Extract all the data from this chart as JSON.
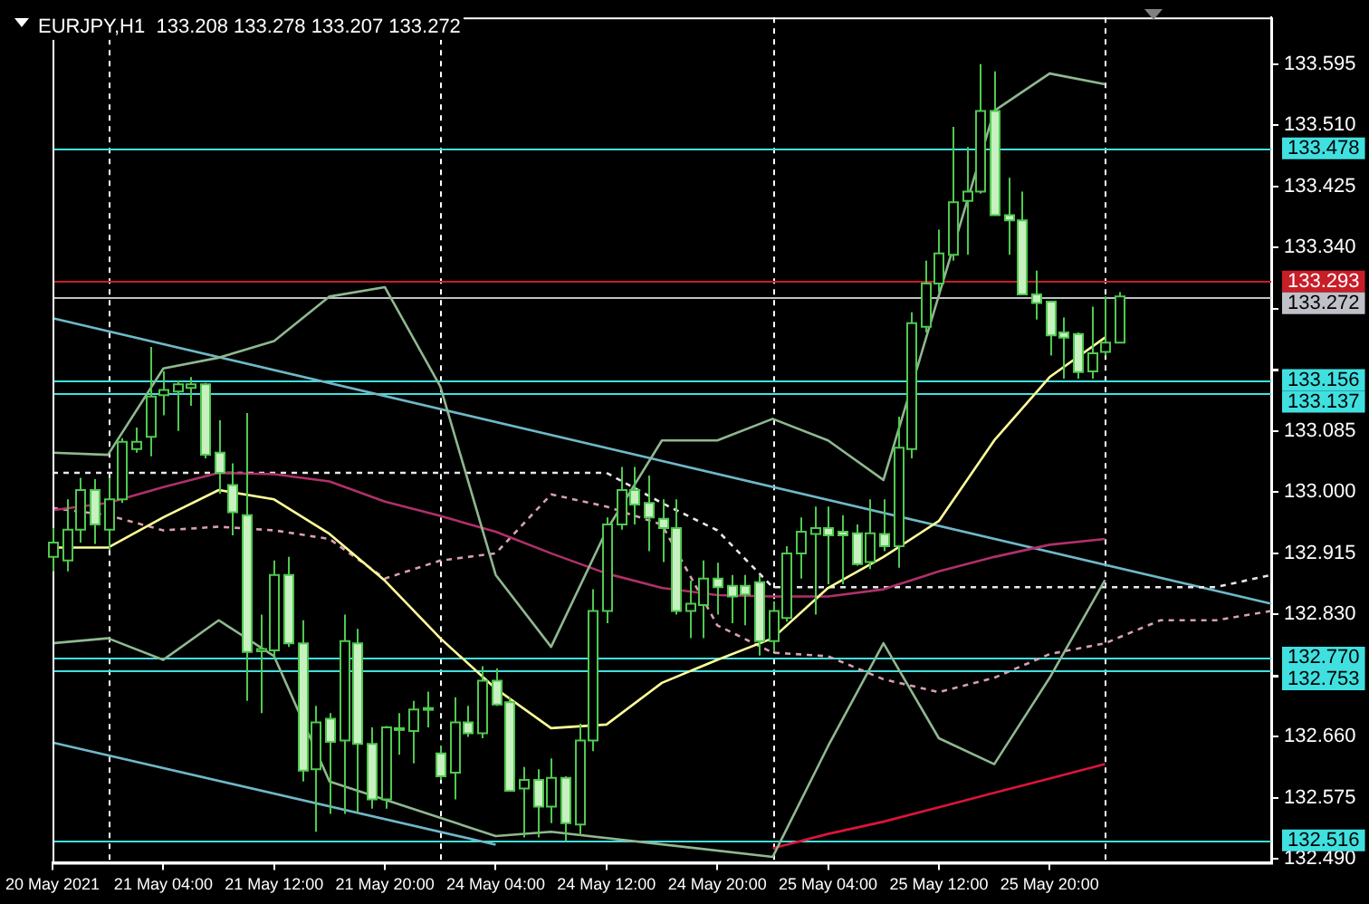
{
  "chart_data": {
    "type": "candlestick",
    "title": "EURJPY,H1  133.208 133.278 133.207 133.272",
    "categories": [
      "20 May 2021",
      null,
      null,
      null,
      null,
      null,
      null,
      null,
      "21 May 04:00",
      null,
      null,
      null,
      null,
      null,
      null,
      null,
      "21 May 12:00",
      null,
      null,
      null,
      null,
      null,
      null,
      null,
      "21 May 20:00",
      null,
      null,
      null,
      null,
      null,
      null,
      null,
      "24 May 04:00",
      null,
      null,
      null,
      null,
      null,
      null,
      null,
      "24 May 12:00",
      null,
      null,
      null,
      null,
      null,
      null,
      null,
      "24 May 20:00",
      null,
      null,
      null,
      null,
      null,
      null,
      null,
      "25 May 04:00",
      null,
      null,
      null,
      null,
      null,
      null,
      null,
      "25 May 12:00",
      null,
      null,
      null,
      null,
      null,
      null,
      null,
      "25 May 20:00",
      null,
      null,
      null,
      null,
      null,
      null,
      null,
      null,
      null,
      null,
      null,
      null,
      null,
      null,
      null,
      null
    ],
    "ohlc": [
      [
        132.91,
        132.95,
        132.89,
        132.93
      ],
      [
        132.905,
        132.99,
        132.89,
        132.948
      ],
      [
        132.948,
        133.02,
        132.93,
        133.003
      ],
      [
        133.003,
        133.018,
        132.928,
        132.955
      ],
      [
        132.948,
        133.02,
        132.92,
        132.99
      ],
      [
        132.99,
        133.075,
        132.985,
        133.07
      ],
      [
        133.06,
        133.09,
        133.055,
        133.07
      ],
      [
        133.077,
        133.202,
        133.05,
        133.133
      ],
      [
        133.135,
        133.168,
        133.107,
        133.142
      ],
      [
        133.14,
        133.155,
        133.085,
        133.15
      ],
      [
        133.145,
        133.16,
        133.12,
        133.15
      ],
      [
        133.15,
        133.152,
        133.047,
        133.052
      ],
      [
        133.055,
        133.1,
        132.998,
        133.027
      ],
      [
        133.01,
        133.04,
        132.94,
        132.972
      ],
      [
        132.968,
        133.11,
        132.71,
        132.778
      ],
      [
        132.779,
        132.83,
        132.693,
        132.782
      ],
      [
        132.78,
        132.905,
        132.77,
        132.885
      ],
      [
        132.885,
        132.91,
        132.785,
        132.79
      ],
      [
        132.79,
        132.822,
        132.598,
        132.613
      ],
      [
        132.615,
        132.703,
        132.528,
        132.68
      ],
      [
        132.685,
        132.693,
        132.553,
        132.653
      ],
      [
        132.655,
        132.83,
        132.553,
        132.793
      ],
      [
        132.79,
        132.81,
        132.555,
        132.65
      ],
      [
        132.65,
        132.673,
        132.56,
        132.573
      ],
      [
        132.573,
        132.675,
        132.56,
        132.673
      ],
      [
        132.67,
        132.693,
        132.635,
        132.672
      ],
      [
        132.668,
        132.71,
        132.623,
        132.698
      ],
      [
        132.698,
        132.723,
        132.673,
        132.7
      ],
      [
        132.637,
        132.648,
        132.6,
        132.605
      ],
      [
        132.61,
        132.715,
        132.573,
        132.68
      ],
      [
        132.68,
        132.703,
        132.66,
        132.665
      ],
      [
        132.665,
        132.758,
        132.658,
        132.738
      ],
      [
        132.738,
        132.755,
        132.703,
        132.705
      ],
      [
        132.708,
        132.715,
        132.585,
        132.585
      ],
      [
        132.588,
        132.618,
        132.52,
        132.6
      ],
      [
        132.6,
        132.615,
        132.52,
        132.563
      ],
      [
        132.563,
        132.63,
        132.54,
        132.603
      ],
      [
        132.603,
        132.605,
        132.515,
        132.54
      ],
      [
        132.538,
        132.678,
        132.523,
        132.655
      ],
      [
        132.655,
        132.865,
        132.64,
        132.835
      ],
      [
        132.835,
        132.965,
        132.818,
        132.955
      ],
      [
        132.955,
        133.035,
        132.948,
        133.003
      ],
      [
        133.003,
        133.035,
        132.955,
        132.983
      ],
      [
        132.985,
        133.023,
        132.918,
        132.965
      ],
      [
        132.963,
        132.99,
        132.903,
        132.95
      ],
      [
        132.95,
        132.99,
        132.83,
        132.835
      ],
      [
        132.835,
        132.877,
        132.797,
        132.845
      ],
      [
        132.843,
        132.905,
        132.797,
        132.88
      ],
      [
        132.88,
        132.902,
        132.83,
        132.868
      ],
      [
        132.87,
        132.885,
        132.818,
        132.855
      ],
      [
        132.87,
        132.885,
        132.815,
        132.858
      ],
      [
        132.875,
        132.885,
        132.773,
        132.793
      ],
      [
        132.793,
        132.848,
        132.778,
        132.835
      ],
      [
        132.825,
        132.925,
        132.82,
        132.915
      ],
      [
        132.915,
        132.965,
        132.88,
        132.945
      ],
      [
        132.942,
        132.98,
        132.83,
        132.95
      ],
      [
        132.95,
        132.98,
        132.872,
        132.94
      ],
      [
        132.945,
        132.968,
        132.872,
        132.94
      ],
      [
        132.943,
        132.955,
        132.898,
        132.9
      ],
      [
        132.903,
        132.99,
        132.893,
        132.943
      ],
      [
        132.942,
        132.99,
        132.918,
        132.925
      ],
      [
        132.925,
        133.105,
        132.895,
        133.062
      ],
      [
        133.06,
        133.25,
        133.047,
        133.235
      ],
      [
        133.23,
        133.322,
        133.222,
        133.29
      ],
      [
        133.29,
        133.365,
        133.278,
        133.332
      ],
      [
        133.33,
        133.508,
        133.322,
        133.403
      ],
      [
        133.405,
        133.48,
        133.33,
        133.418
      ],
      [
        133.418,
        133.595,
        133.415,
        133.53
      ],
      [
        133.53,
        133.585,
        133.385,
        133.385
      ],
      [
        133.385,
        133.437,
        133.33,
        133.378
      ],
      [
        133.378,
        133.418,
        133.275,
        133.275
      ],
      [
        133.275,
        133.308,
        133.24,
        133.263
      ],
      [
        133.265,
        133.265,
        133.19,
        133.218
      ],
      [
        133.222,
        133.243,
        133.158,
        133.215
      ],
      [
        133.22,
        133.222,
        133.158,
        133.167
      ],
      [
        133.168,
        133.258,
        133.158,
        133.193
      ],
      [
        133.195,
        133.272,
        133.19,
        133.208
      ],
      [
        133.208,
        133.278,
        133.207,
        133.272
      ],
      null,
      null,
      null,
      null,
      null,
      null,
      null,
      null,
      null,
      null,
      null
    ],
    "color": "#4fc94f",
    "colors": [
      "#000000",
      "#000000",
      "#000000",
      "#c8f0c0",
      "#000000",
      "#000000",
      "#000000",
      "#000000",
      "#000000",
      "#000000",
      "#000000",
      "#c8f0c0",
      "#c8f0c0",
      "#c8f0c0",
      "#c8f0c0",
      "#000000",
      "#000000",
      "#c8f0c0",
      "#c8f0c0",
      "#000000",
      "#c8f0c0",
      "#000000",
      "#c8f0c0",
      "#c8f0c0",
      "#000000",
      "#000000",
      "#000000",
      "#000000",
      "#c8f0c0",
      "#000000",
      "#c8f0c0",
      "#000000",
      "#c8f0c0",
      "#c8f0c0",
      "#000000",
      "#c8f0c0",
      "#000000",
      "#c8f0c0",
      "#000000",
      "#000000",
      "#000000",
      "#000000",
      "#c8f0c0",
      "#c8f0c0",
      "#c8f0c0",
      "#c8f0c0",
      "#000000",
      "#000000",
      "#c8f0c0",
      "#c8f0c0",
      "#c8f0c0",
      "#c8f0c0",
      "#000000",
      "#000000",
      "#000000",
      "#000000",
      "#c8f0c0",
      "#c8f0c0",
      "#c8f0c0",
      "#000000",
      "#c8f0c0",
      "#000000",
      "#000000",
      "#000000",
      "#000000",
      "#000000",
      "#000000",
      "#000000",
      "#c8f0c0",
      "#c8f0c0",
      "#c8f0c0",
      "#c8f0c0",
      "#c8f0c0",
      "#c8f0c0",
      "#c8f0c0",
      "#000000",
      "#000000",
      "#000000",
      null,
      null,
      null,
      null,
      null,
      null,
      null,
      null,
      null,
      null,
      null
    ],
    "series": [
      {
        "type": "line",
        "color": "#8fb88f",
        "values": [
          133.055,
          null,
          null,
          null,
          133.052,
          null,
          null,
          null,
          133.172,
          null,
          null,
          null,
          133.187,
          null,
          null,
          null,
          133.21,
          null,
          null,
          null,
          133.272,
          null,
          null,
          null,
          133.285,
          null,
          null,
          null,
          133.147,
          null,
          null,
          null,
          132.885,
          null,
          null,
          null,
          132.785,
          null,
          null,
          null,
          132.947,
          null,
          null,
          null,
          133.072,
          null,
          null,
          null,
          133.072,
          null,
          null,
          null,
          133.102,
          null,
          null,
          null,
          133.072,
          null,
          null,
          null,
          133.017,
          null,
          null,
          null,
          null,
          null,
          null,
          null,
          133.53,
          null,
          null,
          null,
          133.582,
          null,
          null,
          null,
          133.567,
          null,
          null,
          null,
          null,
          null,
          null,
          null,
          null,
          null,
          null,
          null,
          null
        ]
      },
      {
        "type": "line",
        "color": "#8fb88f",
        "values": [
          132.79,
          null,
          null,
          null,
          132.797,
          null,
          null,
          null,
          132.767,
          null,
          null,
          null,
          132.822,
          null,
          null,
          null,
          132.772,
          null,
          null,
          null,
          132.598,
          null,
          null,
          null,
          null,
          null,
          null,
          null,
          null,
          null,
          null,
          null,
          132.522,
          null,
          null,
          null,
          132.528,
          null,
          null,
          null,
          null,
          null,
          null,
          null,
          null,
          null,
          null,
          null,
          null,
          null,
          null,
          null,
          132.493,
          null,
          null,
          null,
          132.647,
          null,
          null,
          null,
          132.79,
          null,
          null,
          null,
          132.658,
          null,
          null,
          null,
          132.622,
          null,
          null,
          null,
          132.742,
          null,
          null,
          null,
          132.878,
          null,
          null,
          null,
          null,
          null,
          null,
          null,
          null,
          null,
          null,
          null,
          null
        ]
      },
      {
        "type": "line",
        "color": "#ffff99",
        "values": [
          132.923,
          null,
          null,
          null,
          132.923,
          null,
          null,
          null,
          132.965,
          null,
          null,
          null,
          133.003,
          null,
          null,
          null,
          132.99,
          null,
          null,
          null,
          132.942,
          null,
          null,
          null,
          132.877,
          null,
          null,
          null,
          132.797,
          null,
          null,
          null,
          132.727,
          null,
          null,
          null,
          132.672,
          null,
          null,
          null,
          132.677,
          null,
          null,
          null,
          132.735,
          null,
          null,
          null,
          132.767,
          null,
          null,
          null,
          132.797,
          null,
          null,
          null,
          132.867,
          null,
          null,
          null,
          132.91,
          null,
          null,
          null,
          132.96,
          null,
          null,
          null,
          133.072,
          null,
          null,
          null,
          133.16,
          null,
          null,
          null,
          133.215,
          null,
          null,
          null,
          null,
          null,
          null,
          null,
          null,
          null,
          null,
          null,
          null
        ]
      },
      {
        "type": "line",
        "color": "#b0306a",
        "values": [
          132.975,
          null,
          null,
          null,
          132.985,
          null,
          null,
          null,
          133.007,
          null,
          null,
          null,
          133.027,
          null,
          null,
          null,
          133.025,
          null,
          null,
          null,
          133.015,
          null,
          null,
          null,
          132.987,
          null,
          null,
          null,
          132.967,
          null,
          null,
          null,
          132.945,
          null,
          null,
          null,
          132.915,
          null,
          null,
          null,
          132.887,
          null,
          null,
          null,
          132.867,
          null,
          null,
          null,
          132.857,
          null,
          null,
          null,
          132.855,
          null,
          null,
          null,
          132.855,
          null,
          null,
          null,
          132.865,
          null,
          null,
          null,
          132.89,
          null,
          null,
          null,
          132.91,
          null,
          null,
          null,
          132.927,
          null,
          null,
          null,
          132.935,
          null,
          null,
          null,
          null,
          null,
          null,
          null,
          null,
          null,
          null,
          null,
          null
        ]
      },
      {
        "type": "line",
        "color": "#dc143c",
        "values": [
          null,
          null,
          null,
          null,
          null,
          null,
          null,
          null,
          null,
          null,
          null,
          null,
          null,
          null,
          null,
          null,
          null,
          null,
          null,
          null,
          null,
          null,
          null,
          null,
          null,
          null,
          null,
          null,
          null,
          null,
          null,
          null,
          null,
          null,
          null,
          null,
          null,
          null,
          null,
          null,
          null,
          null,
          null,
          null,
          null,
          null,
          null,
          null,
          null,
          null,
          null,
          null,
          132.505,
          null,
          null,
          null,
          132.525,
          null,
          null,
          null,
          132.542,
          null,
          null,
          null,
          132.562,
          null,
          null,
          null,
          132.582,
          null,
          null,
          null,
          132.602,
          null,
          null,
          null,
          132.622,
          null,
          null,
          null,
          null,
          null,
          null,
          null,
          null,
          null,
          null,
          null,
          null
        ]
      },
      {
        "type": "line",
        "color": "#e8e8e8",
        "line_style": "dashed",
        "values": [
          133.027,
          null,
          null,
          null,
          133.027,
          null,
          null,
          null,
          133.027,
          null,
          null,
          null,
          133.027,
          null,
          null,
          null,
          133.027,
          null,
          null,
          null,
          133.027,
          null,
          null,
          null,
          133.027,
          null,
          null,
          null,
          133.027,
          null,
          null,
          null,
          133.027,
          null,
          null,
          null,
          133.027,
          null,
          null,
          null,
          133.027,
          null,
          null,
          null,
          132.985,
          null,
          null,
          null,
          132.947,
          null,
          null,
          null,
          132.868,
          null,
          null,
          null,
          132.868,
          null,
          null,
          null,
          132.868,
          null,
          null,
          null,
          132.868,
          null,
          null,
          null,
          132.868,
          null,
          null,
          null,
          132.868,
          null,
          null,
          null,
          132.868,
          null,
          null,
          null,
          132.868,
          null,
          null,
          null,
          132.868,
          null,
          null,
          null,
          132.885
        ]
      },
      {
        "type": "line",
        "color": "#d8a0b0",
        "line_style": "dashed",
        "values": [
          132.978,
          null,
          null,
          null,
          132.968,
          null,
          null,
          null,
          132.947,
          null,
          null,
          null,
          132.952,
          null,
          null,
          null,
          132.947,
          null,
          null,
          null,
          132.935,
          null,
          null,
          null,
          132.88,
          null,
          null,
          null,
          132.905,
          null,
          null,
          null,
          132.915,
          null,
          null,
          null,
          132.997,
          null,
          null,
          null,
          132.98,
          null,
          null,
          null,
          132.955,
          null,
          null,
          null,
          132.815,
          null,
          null,
          null,
          132.777,
          null,
          null,
          null,
          132.772,
          null,
          null,
          null,
          132.74,
          null,
          null,
          null,
          132.722,
          null,
          null,
          null,
          132.742,
          null,
          null,
          null,
          132.775,
          null,
          null,
          null,
          132.79,
          null,
          null,
          null,
          132.822,
          null,
          null,
          null,
          132.822,
          null,
          null,
          null,
          132.835
        ]
      },
      {
        "type": "line",
        "color": "#6fb8c8",
        "values": [
          133.242,
          null,
          null,
          null,
          null,
          null,
          null,
          null,
          null,
          null,
          null,
          null,
          null,
          null,
          null,
          null,
          null,
          null,
          null,
          null,
          null,
          null,
          null,
          null,
          null,
          null,
          null,
          null,
          null,
          null,
          null,
          null,
          null,
          null,
          null,
          null,
          null,
          null,
          null,
          null,
          null,
          null,
          null,
          null,
          null,
          null,
          null,
          null,
          null,
          null,
          null,
          null,
          null,
          null,
          null,
          null,
          null,
          null,
          null,
          null,
          null,
          null,
          null,
          null,
          null,
          null,
          null,
          null,
          null,
          null,
          null,
          null,
          null,
          null,
          null,
          null,
          null,
          null,
          null,
          null,
          null,
          null,
          null,
          null,
          null,
          null,
          null,
          null,
          132.845
        ]
      },
      {
        "type": "line",
        "color": "#6fb8c8",
        "values": [
          132.652,
          null,
          null,
          null,
          null,
          null,
          null,
          null,
          null,
          null,
          null,
          null,
          null,
          null,
          null,
          null,
          null,
          null,
          null,
          null,
          null,
          null,
          null,
          null,
          null,
          null,
          null,
          null,
          null,
          null,
          null,
          null,
          132.51,
          null,
          null,
          null,
          null,
          null,
          null,
          null,
          null,
          null,
          null,
          null,
          null,
          null,
          null,
          null,
          null,
          null,
          null,
          null,
          null,
          null,
          null,
          null,
          null,
          null,
          null,
          null,
          null,
          null,
          null,
          null,
          null,
          null,
          null,
          null,
          null,
          null,
          null,
          null,
          null,
          null,
          null,
          null,
          null,
          null,
          null,
          null,
          null,
          null,
          null,
          null,
          null,
          null,
          null,
          null,
          null
        ]
      }
    ],
    "grid": "x",
    "ylim": [
      132.485,
      133.66
    ],
    "yticks": [
      {
        "value": 133.595,
        "label": "133.595"
      },
      {
        "value": 133.51,
        "label": "133.510"
      },
      {
        "value": 133.425,
        "label": "133.425"
      },
      {
        "value": 133.34,
        "label": "133.340"
      },
      {
        "value": 133.255,
        "label": null
      },
      {
        "value": 133.17,
        "label": null
      },
      {
        "value": 133.085,
        "label": "133.085"
      },
      {
        "value": 133.0,
        "label": "133.000"
      },
      {
        "value": 132.915,
        "label": "132.915"
      },
      {
        "value": 132.83,
        "label": "132.830"
      },
      {
        "value": 132.745,
        "label": null
      },
      {
        "value": 132.66,
        "label": "132.660"
      },
      {
        "value": 132.575,
        "label": "132.575"
      },
      {
        "value": 132.49,
        "label": "132.490"
      }
    ],
    "ref_lines": [
      {
        "axis": "y",
        "value": 133.478,
        "label": "133.478",
        "color": "#40e0e0"
      },
      {
        "axis": "y",
        "value": 133.293,
        "label": "133.293",
        "color": "#c81e28"
      },
      {
        "axis": "y",
        "value": 133.272,
        "label": "133.272",
        "color": "#c0c0c8"
      },
      {
        "axis": "y",
        "value": 133.156,
        "label": "133.156",
        "color": "#40e0e0"
      },
      {
        "axis": "y",
        "value": 133.137,
        "label": "133.137",
        "color": "#40e0e0"
      },
      {
        "axis": "y",
        "value": 132.77,
        "label": "132.770",
        "color": "#40e0e0"
      },
      {
        "axis": "y",
        "value": 132.753,
        "label": "132.753",
        "color": "#40e0e0"
      },
      {
        "axis": "y",
        "value": 132.516,
        "label": "132.516",
        "color": "#40e0e0"
      }
    ]
  }
}
